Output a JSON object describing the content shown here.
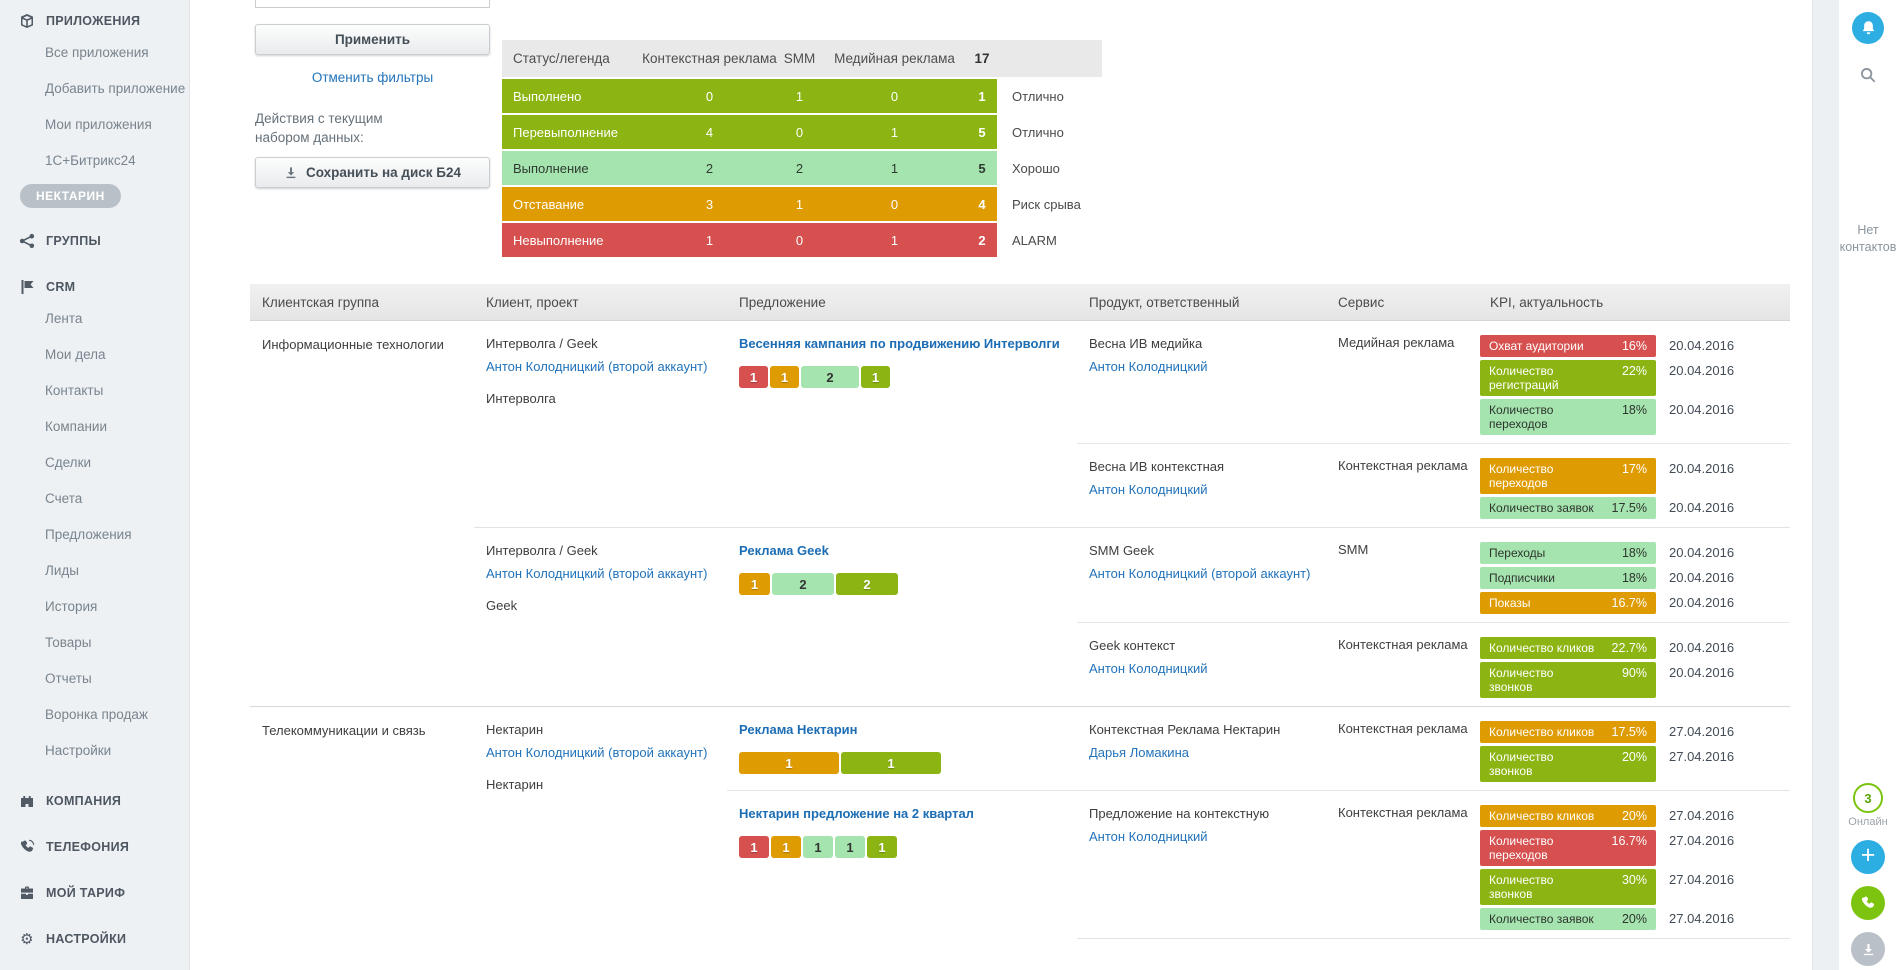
{
  "colors": {
    "olive": "#8cb412",
    "mint": "#a5e4ae",
    "orange": "#df9b02",
    "red": "#d5504e",
    "link_blue": "#2273bb",
    "accent_blue": "#2daee2",
    "accent_green": "#7cc40f",
    "badge_gray": "#b9c1c8"
  },
  "sidebar": {
    "sections": [
      {
        "label": "ПРИЛОЖЕНИЯ",
        "icon": "apps-icon",
        "items": [
          "Все приложения",
          "Добавить приложение",
          "Мои приложения",
          "1С+Битрикс24"
        ],
        "badge": "НЕКТАРИН"
      },
      {
        "label": "ГРУППЫ",
        "icon": "groups-icon",
        "items": []
      },
      {
        "label": "CRM",
        "icon": "crm-icon",
        "items": [
          "Лента",
          "Мои дела",
          "Контакты",
          "Компании",
          "Сделки",
          "Счета",
          "Предложения",
          "Лиды",
          "История",
          "Товары",
          "Отчеты",
          "Воронка продаж",
          "Настройки"
        ]
      },
      {
        "label": "КОМПАНИЯ",
        "icon": "company-icon",
        "items": []
      },
      {
        "label": "ТЕЛЕФОНИЯ",
        "icon": "telephony-icon",
        "items": []
      },
      {
        "label": "МОЙ ТАРИФ",
        "icon": "tariff-icon",
        "items": []
      },
      {
        "label": "НАСТРОЙКИ",
        "icon": "settings-icon",
        "items": []
      }
    ]
  },
  "filters": {
    "apply_label": "Применить",
    "cancel_label": "Отменить фильтры",
    "actions_label": "Действия с текущим\nнабором данных:",
    "save_label": "Сохранить на диск Б24"
  },
  "legend": {
    "headers": [
      "Статус/легенда",
      "Контекстная реклама",
      "SMM",
      "Медийная реклама",
      "17"
    ],
    "rows": [
      {
        "label": "Выполнено",
        "values": [
          0,
          1,
          0
        ],
        "total": 1,
        "status": "Отлично",
        "color": "olive"
      },
      {
        "label": "Перевыполнение",
        "values": [
          4,
          0,
          1
        ],
        "total": 5,
        "status": "Отлично",
        "color": "olive"
      },
      {
        "label": "Выполнение",
        "values": [
          2,
          2,
          1
        ],
        "total": 5,
        "status": "Хорошо",
        "color": "mint"
      },
      {
        "label": "Отставание",
        "values": [
          3,
          1,
          0
        ],
        "total": 4,
        "status": "Риск срыва",
        "color": "orange"
      },
      {
        "label": "Невыполнение",
        "values": [
          1,
          0,
          1
        ],
        "total": 2,
        "status": "ALARM",
        "color": "red"
      }
    ]
  },
  "table": {
    "headers": [
      "Клиентская группа",
      "Клиент, проект",
      "Предложение",
      "Продукт, ответственный",
      "Сервис",
      "KPI, актуальность"
    ],
    "groups": [
      {
        "name": "Информационные технологии",
        "clients": [
          {
            "client": "Интерволга / Geek",
            "manager": "Антон Колодницкий (второй аккаунт)",
            "project": "Интерволга",
            "proposals": [
              {
                "title": "Весенняя кампания по продвижению Интерволги",
                "badge_unit": 29,
                "badges": [
                  {
                    "v": 1,
                    "c": "red"
                  },
                  {
                    "v": 1,
                    "c": "orange"
                  },
                  {
                    "v": 2,
                    "c": "mint"
                  },
                  {
                    "v": 1,
                    "c": "olive"
                  }
                ],
                "products": [
                  {
                    "product": "Весна ИВ медийка",
                    "person": "Антон Колодницкий",
                    "service": "Медийная реклама",
                    "kpis": [
                      {
                        "label": "Охват аудитории",
                        "value": "16%",
                        "c": "red",
                        "date": "20.04.2016"
                      },
                      {
                        "label": "Количество регистраций",
                        "value": "22%",
                        "c": "olive",
                        "date": "20.04.2016"
                      },
                      {
                        "label": "Количество переходов",
                        "value": "18%",
                        "c": "mint",
                        "date": "20.04.2016"
                      }
                    ]
                  },
                  {
                    "product": "Весна ИВ контекстная",
                    "person": "Антон Колодницкий",
                    "service": "Контекстная реклама",
                    "kpis": [
                      {
                        "label": "Количество переходов",
                        "value": "17%",
                        "c": "orange",
                        "date": "20.04.2016"
                      },
                      {
                        "label": "Количество заявок",
                        "value": "17.5%",
                        "c": "mint",
                        "date": "20.04.2016"
                      }
                    ]
                  }
                ]
              }
            ]
          },
          {
            "client": "Интерволга / Geek",
            "manager": "Антон Колодницкий (второй аккаунт)",
            "project": "Geek",
            "proposals": [
              {
                "title": "Реклама Geek",
                "badge_unit": 31,
                "badges": [
                  {
                    "v": 1,
                    "c": "orange"
                  },
                  {
                    "v": 2,
                    "c": "mint"
                  },
                  {
                    "v": 2,
                    "c": "olive"
                  }
                ],
                "products": [
                  {
                    "product": "SMM Geek",
                    "person": "Антон Колодницкий (второй аккаунт)",
                    "service": "SMM",
                    "kpis": [
                      {
                        "label": "Переходы",
                        "value": "18%",
                        "c": "mint",
                        "date": "20.04.2016"
                      },
                      {
                        "label": "Подписчики",
                        "value": "18%",
                        "c": "mint",
                        "date": "20.04.2016"
                      },
                      {
                        "label": "Показы",
                        "value": "16.7%",
                        "c": "orange",
                        "date": "20.04.2016"
                      }
                    ]
                  },
                  {
                    "product": "Geek контекст",
                    "person": "Антон Колодницкий",
                    "service": "Контекстная реклама",
                    "kpis": [
                      {
                        "label": "Количество кликов",
                        "value": "22.7%",
                        "c": "olive",
                        "date": "20.04.2016"
                      },
                      {
                        "label": "Количество звонков",
                        "value": "90%",
                        "c": "olive",
                        "date": "20.04.2016"
                      }
                    ]
                  }
                ]
              }
            ]
          }
        ]
      },
      {
        "name": "Телекоммуникации и связь",
        "clients": [
          {
            "client": "Нектарин",
            "manager": "Антон Колодницкий (второй аккаунт)",
            "project": "Нектарин",
            "proposals": [
              {
                "title": "Реклама Нектарин",
                "badge_unit": 100,
                "badges": [
                  {
                    "v": 1,
                    "c": "orange"
                  },
                  {
                    "v": 1,
                    "c": "olive"
                  }
                ],
                "products": [
                  {
                    "product": "Контекстная Реклама Нектарин",
                    "person": "Дарья Ломакина",
                    "service": "Контекстная реклама",
                    "kpis": [
                      {
                        "label": "Количество кликов",
                        "value": "17.5%",
                        "c": "orange",
                        "date": "27.04.2016"
                      },
                      {
                        "label": "Количество звонков",
                        "value": "20%",
                        "c": "olive",
                        "date": "27.04.2016"
                      }
                    ]
                  }
                ]
              },
              {
                "title": "Нектарин предложение на 2 квартал",
                "badge_unit": 30,
                "badges": [
                  {
                    "v": 1,
                    "c": "red"
                  },
                  {
                    "v": 1,
                    "c": "orange"
                  },
                  {
                    "v": 1,
                    "c": "mint"
                  },
                  {
                    "v": 1,
                    "c": "mint"
                  },
                  {
                    "v": 1,
                    "c": "olive"
                  }
                ],
                "products": [
                  {
                    "product": "Предложение на контекстную",
                    "person": "Антон Колодницкий",
                    "service": "Контекстная реклама",
                    "kpis": [
                      {
                        "label": "Количество кликов",
                        "value": "20%",
                        "c": "orange",
                        "date": "27.04.2016"
                      },
                      {
                        "label": "Количество переходов",
                        "value": "16.7%",
                        "c": "red",
                        "date": "27.04.2016"
                      },
                      {
                        "label": "Количество звонков",
                        "value": "30%",
                        "c": "olive",
                        "date": "27.04.2016"
                      },
                      {
                        "label": "Количество заявок",
                        "value": "20%",
                        "c": "mint",
                        "date": "27.04.2016"
                      }
                    ]
                  }
                ]
              }
            ]
          }
        ]
      }
    ]
  },
  "right_rail": {
    "no_contacts": "Нет контактов",
    "online_count": "3",
    "online_label": "Онлайн"
  }
}
